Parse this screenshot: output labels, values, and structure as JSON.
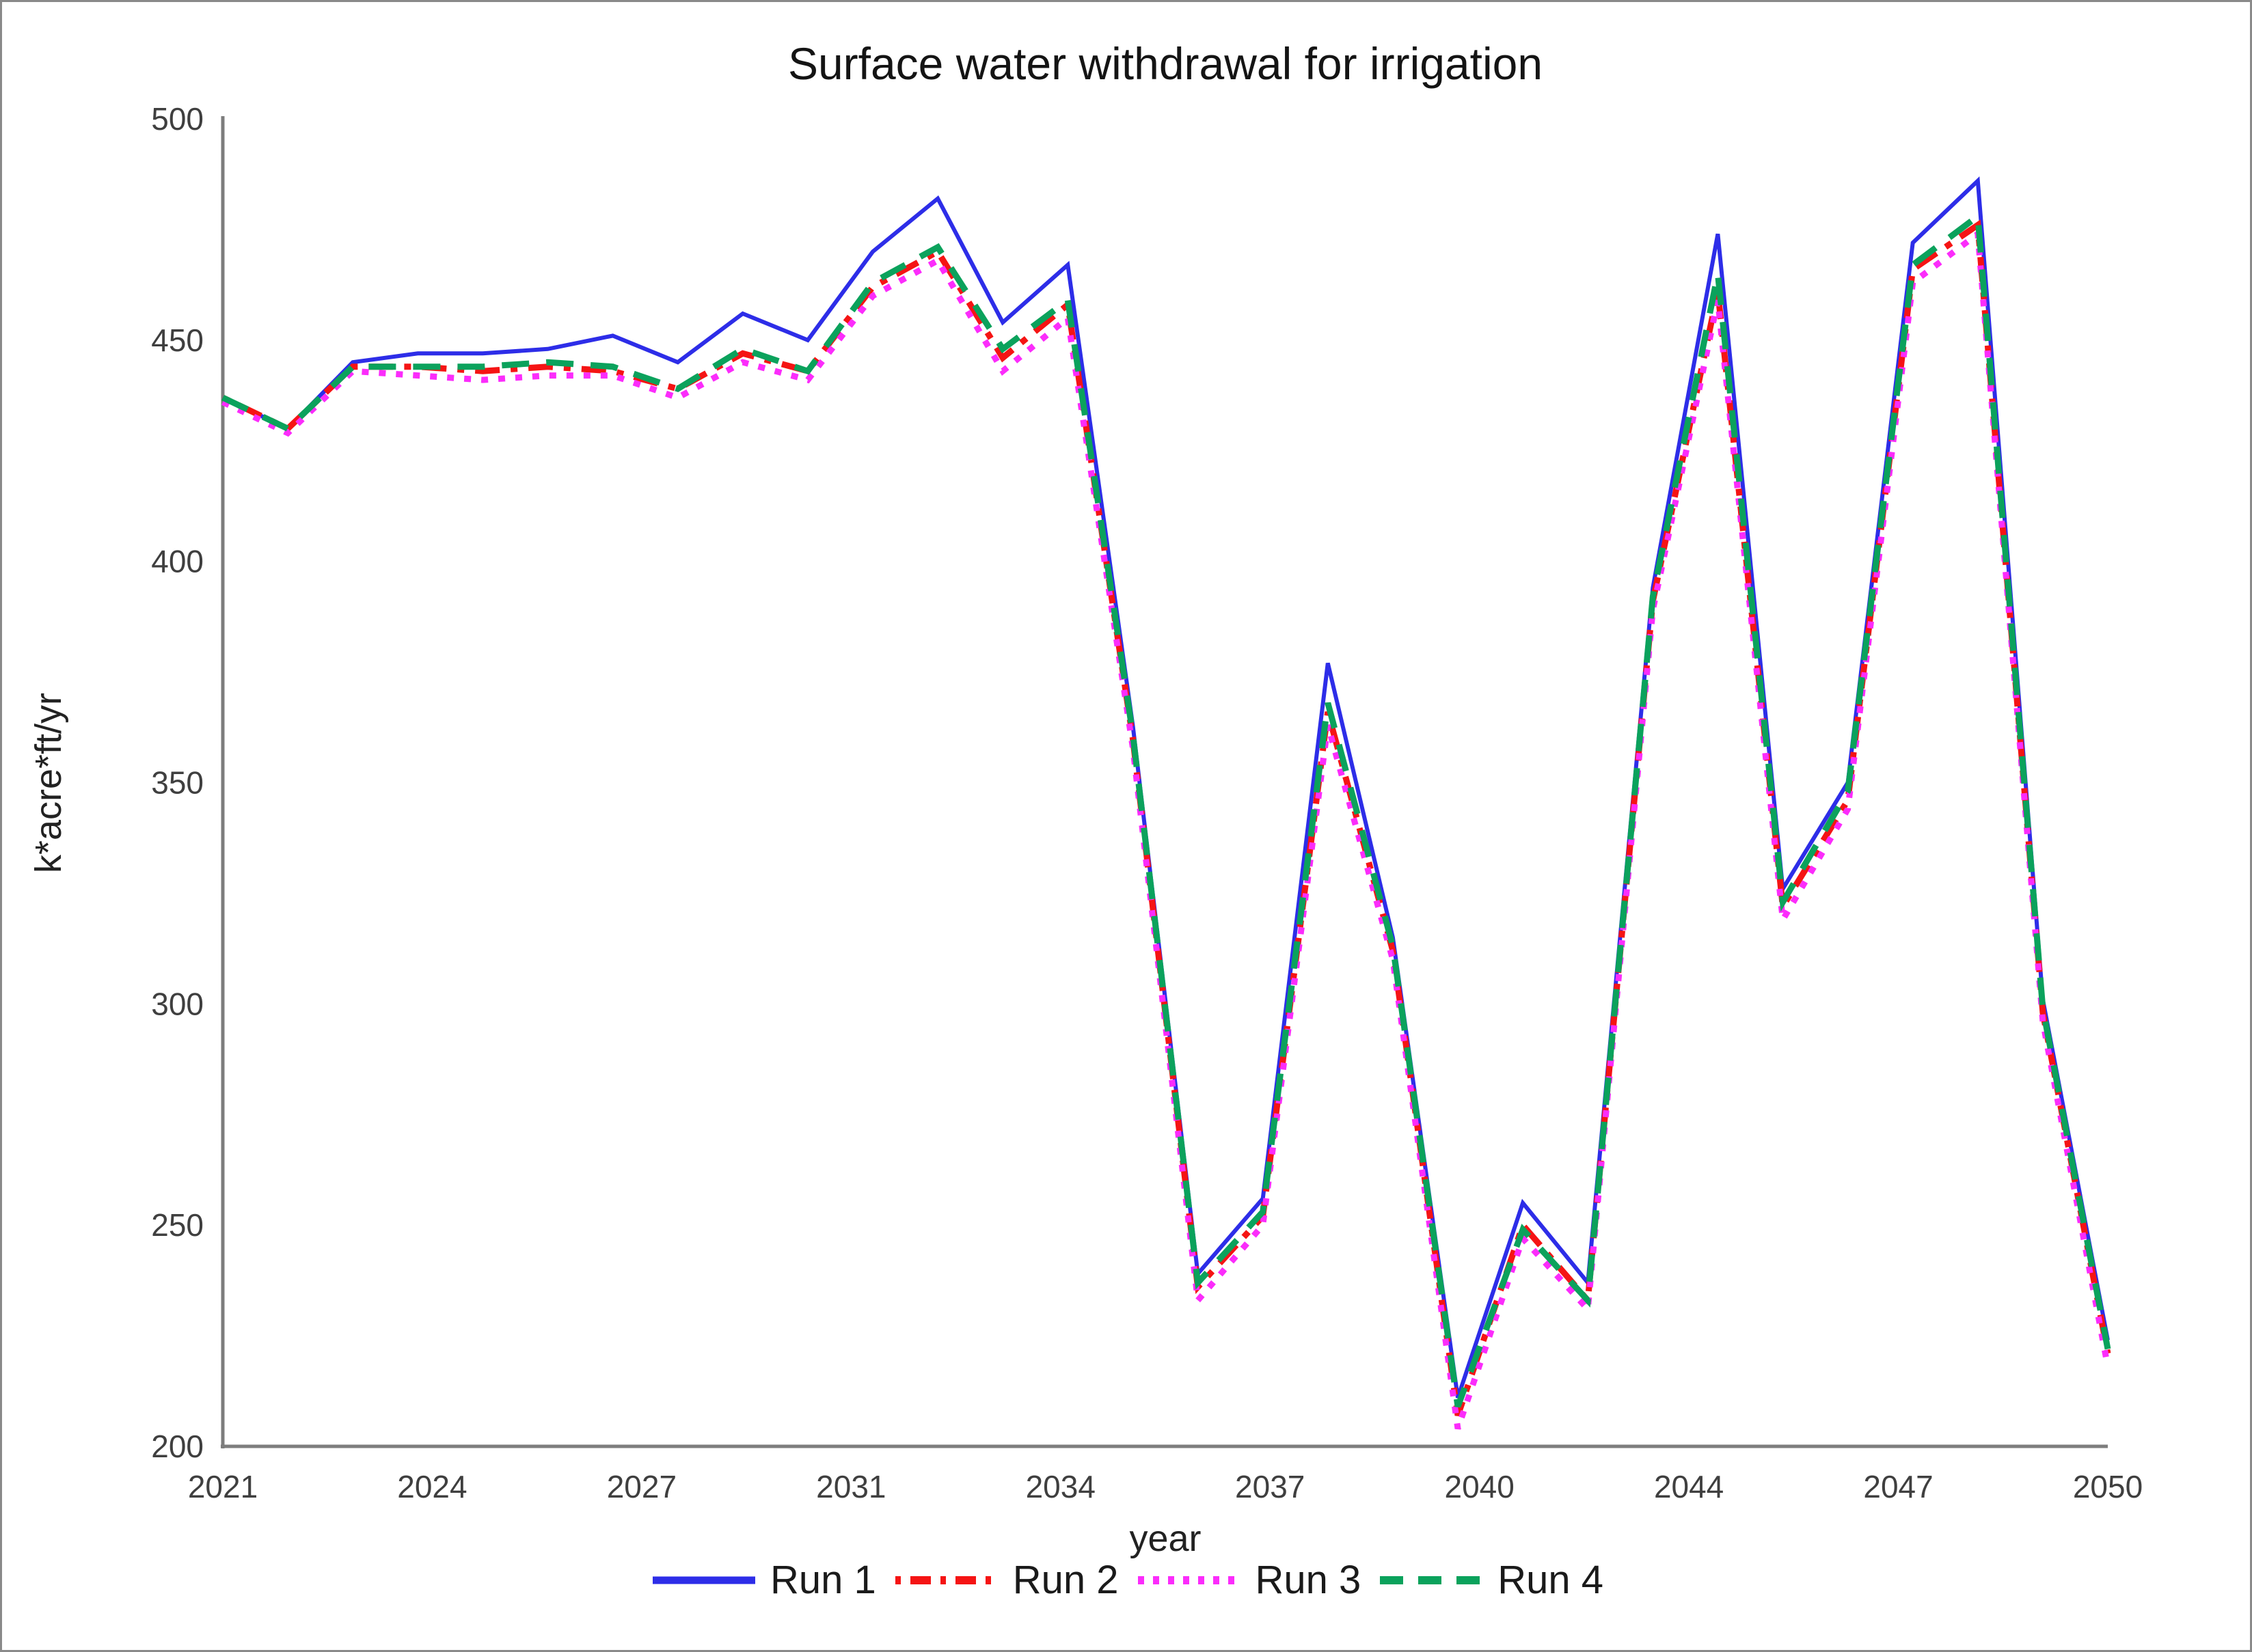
{
  "title": "Surface water withdrawal for irrigation",
  "chart_data": {
    "type": "line",
    "title": "Surface water withdrawal for irrigation",
    "xlabel": "year",
    "ylabel": "k*acre*ft/yr",
    "xlim": [
      2021,
      2050
    ],
    "ylim": [
      200,
      500
    ],
    "grid": false,
    "legend_position": "bottom-center",
    "axis_color": "#7d7d7d",
    "tick_text_color": "#3f3f3f",
    "yticks": [
      200,
      250,
      300,
      350,
      400,
      450,
      500
    ],
    "xtick_labels": [
      "2021",
      "2024",
      "2027",
      "2031",
      "2034",
      "2037",
      "2040",
      "2044",
      "2047",
      "2050"
    ],
    "x": [
      2021,
      2022,
      2023,
      2024,
      2025,
      2026,
      2027,
      2028,
      2029,
      2030,
      2031,
      2032,
      2033,
      2034,
      2035,
      2036,
      2037,
      2038,
      2039,
      2040,
      2041,
      2042,
      2043,
      2044,
      2045,
      2046,
      2047,
      2048,
      2049,
      2050
    ],
    "series": [
      {
        "name": "Run 1",
        "color": "#2d2de8",
        "style": "solid",
        "values": [
          437,
          430,
          445,
          447,
          447,
          448,
          451,
          445,
          456,
          450,
          470,
          482,
          454,
          467,
          363,
          239,
          256,
          377,
          315,
          211,
          255,
          237,
          394,
          474,
          326,
          350,
          472,
          486,
          301,
          224
        ]
      },
      {
        "name": "Run 2",
        "color": "#f51414",
        "style": "dash-dot",
        "values": [
          437,
          430,
          444,
          444,
          443,
          444,
          443,
          439,
          447,
          443,
          462,
          470,
          446,
          458,
          360,
          236,
          252,
          366,
          312,
          207,
          250,
          233,
          391,
          461,
          322,
          346,
          466,
          476,
          298,
          221
        ]
      },
      {
        "name": "Run 3",
        "color": "#fb2cfb",
        "style": "dotted",
        "values": [
          436,
          429,
          443,
          442,
          441,
          442,
          442,
          437,
          445,
          441,
          460,
          468,
          443,
          455,
          358,
          233,
          250,
          363,
          310,
          204,
          247,
          231,
          389,
          459,
          319,
          344,
          463,
          474,
          296,
          218
        ]
      },
      {
        "name": "Run 4",
        "color": "#0ba25c",
        "style": "dashed",
        "values": [
          437,
          430,
          444,
          444,
          444,
          445,
          444,
          439,
          448,
          443,
          463,
          471,
          448,
          459,
          361,
          237,
          253,
          368,
          313,
          209,
          249,
          233,
          392,
          465,
          323,
          348,
          467,
          478,
          299,
          222
        ]
      }
    ]
  }
}
